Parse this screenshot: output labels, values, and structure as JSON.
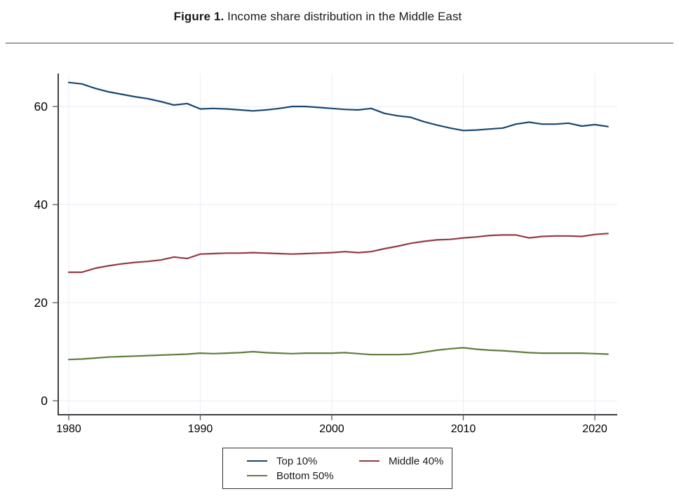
{
  "title": {
    "label": "Figure 1.",
    "text": " Income share distribution in the Middle East"
  },
  "chart_data": {
    "type": "line",
    "title": "Figure 1. Income share distribution in the Middle East",
    "xlabel": "",
    "ylabel": "",
    "x": [
      1980,
      1981,
      1982,
      1983,
      1984,
      1985,
      1986,
      1987,
      1988,
      1989,
      1990,
      1991,
      1992,
      1993,
      1994,
      1995,
      1996,
      1997,
      1998,
      1999,
      2000,
      2001,
      2002,
      2003,
      2004,
      2005,
      2006,
      2007,
      2008,
      2009,
      2010,
      2011,
      2012,
      2013,
      2014,
      2015,
      2016,
      2017,
      2018,
      2019,
      2020,
      2021
    ],
    "series": [
      {
        "name": "Top 10%",
        "color": "#1a476f",
        "values": [
          64.9,
          64.6,
          63.7,
          63.0,
          62.5,
          62.0,
          61.6,
          61.0,
          60.3,
          60.6,
          59.5,
          59.6,
          59.5,
          59.3,
          59.1,
          59.3,
          59.6,
          60.0,
          60.0,
          59.8,
          59.6,
          59.4,
          59.3,
          59.6,
          58.6,
          58.1,
          57.8,
          56.9,
          56.2,
          55.6,
          55.1,
          55.2,
          55.4,
          55.6,
          56.4,
          56.8,
          56.4,
          56.4,
          56.6,
          56.0,
          56.3,
          55.9
        ]
      },
      {
        "name": "Middle 40%",
        "color": "#943a42",
        "values": [
          26.2,
          26.2,
          27.0,
          27.5,
          27.9,
          28.2,
          28.4,
          28.7,
          29.3,
          29.0,
          29.9,
          30.0,
          30.1,
          30.1,
          30.2,
          30.1,
          30.0,
          29.9,
          30.0,
          30.1,
          30.2,
          30.4,
          30.2,
          30.4,
          31.0,
          31.5,
          32.1,
          32.5,
          32.8,
          32.9,
          33.2,
          33.4,
          33.7,
          33.8,
          33.8,
          33.2,
          33.5,
          33.6,
          33.6,
          33.5,
          33.9,
          34.1
        ]
      },
      {
        "name": "Bottom 50%",
        "color": "#5e7d3c",
        "values": [
          8.4,
          8.5,
          8.7,
          8.9,
          9.0,
          9.1,
          9.2,
          9.3,
          9.4,
          9.5,
          9.7,
          9.6,
          9.7,
          9.8,
          10.0,
          9.8,
          9.7,
          9.6,
          9.7,
          9.7,
          9.7,
          9.8,
          9.6,
          9.4,
          9.4,
          9.4,
          9.5,
          9.9,
          10.3,
          10.6,
          10.8,
          10.5,
          10.3,
          10.2,
          10.0,
          9.8,
          9.7,
          9.7,
          9.7,
          9.7,
          9.6,
          9.5
        ]
      }
    ],
    "xticks": [
      1980,
      1990,
      2000,
      2010,
      2020
    ],
    "yticks": [
      0,
      20,
      40,
      60
    ],
    "xlim": [
      1979.2,
      2021.7
    ],
    "ylim": [
      -2.9,
      66.7
    ],
    "grid": true,
    "legend_position": "bottom-center",
    "legend_columns": 2
  },
  "colors": {
    "axis": "#3f3f3f",
    "tick": "#5a5a5a",
    "grid": "#e7eef4",
    "tick_label": "#000000"
  }
}
